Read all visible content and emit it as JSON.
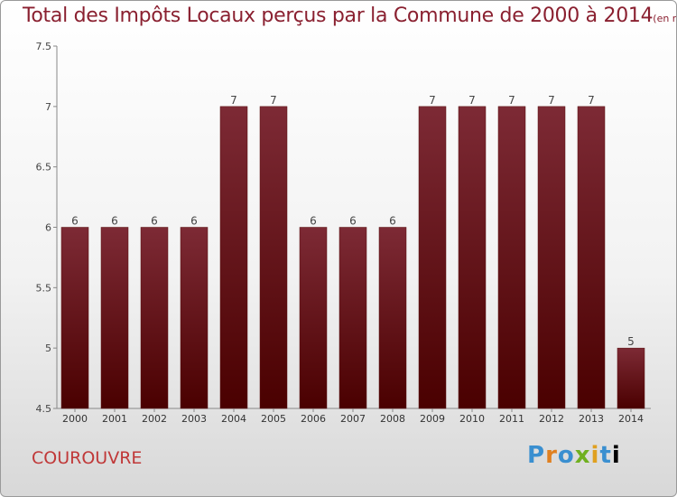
{
  "header": {
    "title": "Total des Impôts Locaux perçus par la Commune de 2000 à 2014",
    "unit": "(en milliers d'€)"
  },
  "footer": {
    "commune": "COUROUVRE",
    "logo_letters": [
      "P",
      "r",
      "o",
      "x",
      "i",
      "t",
      "i"
    ]
  },
  "colors": {
    "bar_top": "#7d2a35",
    "bar_bottom": "#4a0000",
    "title": "#8a2030",
    "axis": "#888888"
  },
  "chart_data": {
    "type": "bar",
    "title": "Total des Impôts Locaux perçus par la Commune de 2000 à 2014",
    "xlabel": "",
    "ylabel": "(en milliers d'€)",
    "categories": [
      "2000",
      "2001",
      "2002",
      "2003",
      "2004",
      "2005",
      "2006",
      "2007",
      "2008",
      "2009",
      "2010",
      "2011",
      "2012",
      "2013",
      "2014"
    ],
    "values": [
      6,
      6,
      6,
      6,
      7,
      7,
      6,
      6,
      6,
      7,
      7,
      7,
      7,
      7,
      5
    ],
    "labels": [
      "6",
      "6",
      "6",
      "6",
      "7",
      "7",
      "6",
      "6",
      "6",
      "7",
      "7",
      "7",
      "7",
      "7",
      "5"
    ],
    "ylim": [
      4.5,
      7.5
    ],
    "yticks": [
      4.5,
      5,
      5.5,
      6,
      6.5,
      7,
      7.5
    ],
    "ytick_labels": [
      "4.5",
      "5",
      "5.5",
      "6",
      "6.5",
      "7",
      "7.5"
    ],
    "grid": false,
    "legend": "none"
  }
}
